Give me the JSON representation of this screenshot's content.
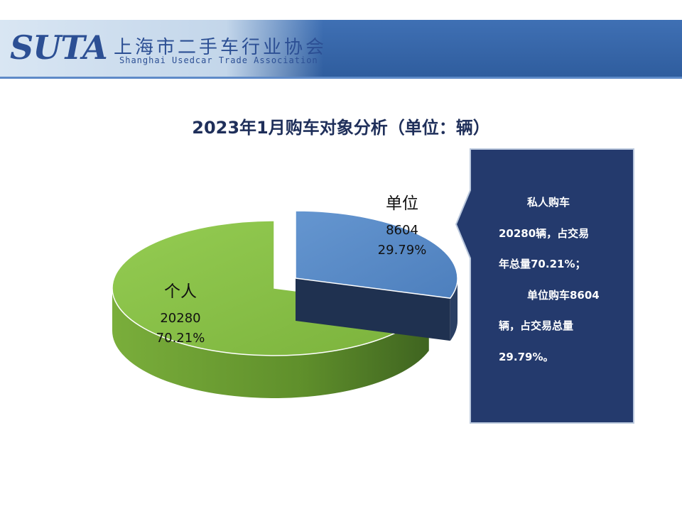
{
  "header": {
    "logo": "SUTA",
    "org_name_cn": "上海市二手车行业协会",
    "org_name_en": "Shanghai Usedcar Trade Association"
  },
  "colors": {
    "header_blue": "#2f5d9e",
    "slice_company": "#5b8cc8",
    "slice_personal": "#86bf45",
    "callout_bg": "#243a6d"
  },
  "chart_data": {
    "type": "pie",
    "title": "2023年1月购车对象分析（单位：辆）",
    "slices": [
      {
        "label": "单位",
        "value": 8604,
        "percent": "29.79%"
      },
      {
        "label": "个人",
        "value": 20280,
        "percent": "70.21%"
      }
    ]
  },
  "callout": {
    "line1": "私人购车",
    "line2": "20280辆，占交易",
    "line3": "年总量70.21%；",
    "line4": "单位购车8604",
    "line5": "辆，占交易总量",
    "line6": "29.79%。"
  }
}
